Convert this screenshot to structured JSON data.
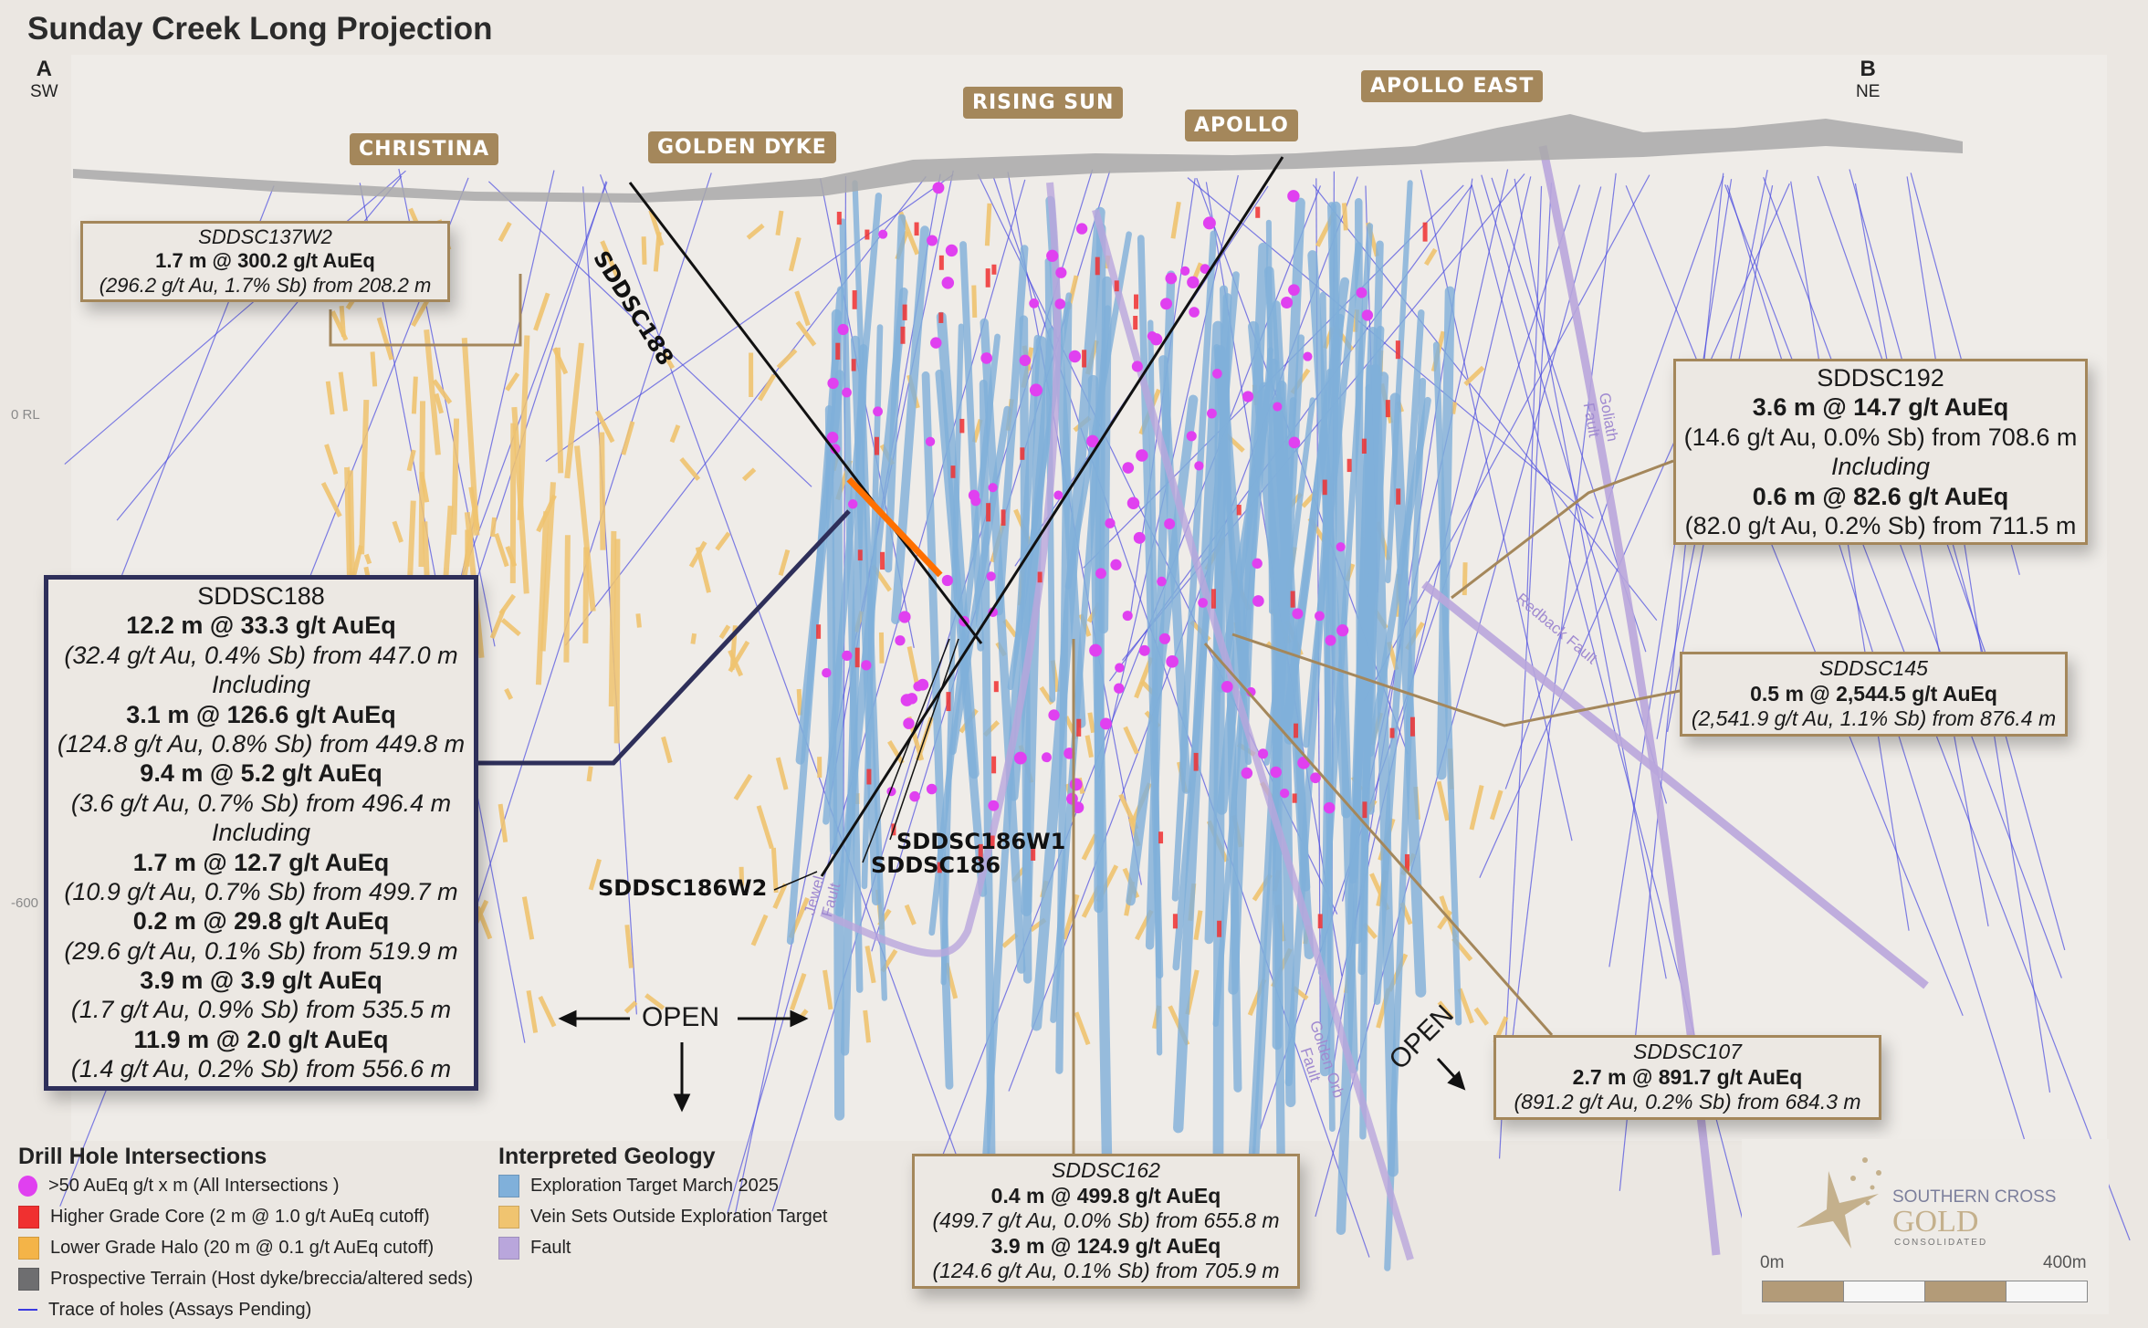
{
  "title": "Sunday Creek Long Projection",
  "section_ends": {
    "a": {
      "letter": "A",
      "direction": "SW"
    },
    "b": {
      "letter": "B",
      "direction": "NE"
    }
  },
  "rl_labels": {
    "zero": "0 RL",
    "minus600": "-600"
  },
  "zones": [
    "CHRISTINA",
    "GOLDEN DYKE",
    "RISING SUN",
    "APOLLO",
    "APOLLO EAST"
  ],
  "hole_labels": {
    "sddsc188": "SDDSC188",
    "sddsc186w1": "SDDSC186W1",
    "sddsc186": "SDDSC186",
    "sddsc186w2": "SDDSC186W2"
  },
  "faults": {
    "goliath": [
      "Goliath",
      "Fault"
    ],
    "redback": "Redback Fault",
    "jewel": [
      "Jewel",
      "Fault"
    ],
    "golden_orb": [
      "Golden Orb",
      "Fault"
    ]
  },
  "open_labels": {
    "horizontal": "OPEN",
    "diagonal": "OPEN"
  },
  "callouts": {
    "sddsc137w2": [
      {
        "text": "SDDSC137W2",
        "kind": "header-italic"
      },
      {
        "text": "1.7 m @ 300.2 g/t AuEq",
        "kind": "grade"
      },
      {
        "text": "(296.2 g/t Au, 1.7% Sb) from 208.2 m",
        "kind": "detail"
      }
    ],
    "sddsc188": [
      {
        "text": "SDDSC188",
        "kind": "header"
      },
      {
        "text": "12.2 m @ 33.3 g/t AuEq",
        "kind": "grade"
      },
      {
        "text": "(32.4 g/t Au, 0.4% Sb) from 447.0 m",
        "kind": "detail"
      },
      {
        "text": "Including",
        "kind": "including"
      },
      {
        "text": "3.1 m @ 126.6 g/t AuEq",
        "kind": "grade"
      },
      {
        "text": "(124.8 g/t Au, 0.8% Sb) from 449.8 m",
        "kind": "detail"
      },
      {
        "text": "9.4 m @ 5.2 g/t AuEq",
        "kind": "grade"
      },
      {
        "text": "(3.6 g/t Au, 0.7% Sb) from 496.4 m",
        "kind": "detail"
      },
      {
        "text": "Including",
        "kind": "including"
      },
      {
        "text": "1.7 m @ 12.7 g/t AuEq",
        "kind": "grade"
      },
      {
        "text": "(10.9 g/t Au, 0.7% Sb) from 499.7 m",
        "kind": "detail"
      },
      {
        "text": "0.2 m @ 29.8 g/t AuEq",
        "kind": "grade"
      },
      {
        "text": "(29.6 g/t Au, 0.1% Sb) from 519.9 m",
        "kind": "detail"
      },
      {
        "text": "3.9 m @ 3.9 g/t AuEq",
        "kind": "grade"
      },
      {
        "text": "(1.7 g/t Au, 0.9% Sb) from 535.5 m",
        "kind": "detail"
      },
      {
        "text": "11.9 m @ 2.0 g/t AuEq",
        "kind": "grade"
      },
      {
        "text": "(1.4 g/t Au, 0.2% Sb) from 556.6 m",
        "kind": "detail"
      }
    ],
    "sddsc192": [
      {
        "text": "SDDSC192",
        "kind": "header"
      },
      {
        "text": "3.6 m @ 14.7 g/t AuEq",
        "kind": "grade"
      },
      {
        "text": "(14.6 g/t Au, 0.0% Sb) from 708.6 m",
        "kind": "detail-plain"
      },
      {
        "text": "Including",
        "kind": "including"
      },
      {
        "text": "0.6 m @ 82.6 g/t AuEq",
        "kind": "grade"
      },
      {
        "text": "(82.0 g/t Au, 0.2% Sb) from 711.5 m",
        "kind": "detail-plain"
      }
    ],
    "sddsc145": [
      {
        "text": "SDDSC145",
        "kind": "header-italic"
      },
      {
        "text": "0.5 m @ 2,544.5 g/t AuEq",
        "kind": "grade"
      },
      {
        "text": "(2,541.9 g/t Au, 1.1% Sb) from 876.4 m",
        "kind": "detail"
      }
    ],
    "sddsc107": [
      {
        "text": "SDDSC107",
        "kind": "header-italic"
      },
      {
        "text": "2.7 m @ 891.7 g/t AuEq",
        "kind": "grade"
      },
      {
        "text": "(891.2 g/t Au, 0.2% Sb) from 684.3 m",
        "kind": "detail"
      }
    ],
    "sddsc162": [
      {
        "text": "SDDSC162",
        "kind": "header-italic"
      },
      {
        "text": "0.4 m @ 499.8 g/t AuEq",
        "kind": "grade"
      },
      {
        "text": "(499.7 g/t Au, 0.0% Sb) from 655.8 m",
        "kind": "detail"
      },
      {
        "text": "3.9 m @ 124.9 g/t AuEq",
        "kind": "grade"
      },
      {
        "text": "(124.6 g/t Au, 0.1% Sb) from 705.9 m",
        "kind": "detail"
      }
    ]
  },
  "legend": {
    "drill": {
      "title": "Drill Hole Intersections",
      "items": [
        {
          "label": ">50 AuEq g/t x m (All Intersections )",
          "color": "#e040f0",
          "shape": "circle"
        },
        {
          "label": "Higher Grade Core (2 m @ 1.0 g/t AuEq cutoff)",
          "color": "#f03030",
          "shape": "square"
        },
        {
          "label": "Lower Grade Halo (20 m @ 0.1 g/t AuEq cutoff)",
          "color": "#f4b448",
          "shape": "square"
        },
        {
          "label": "Prospective Terrain (Host dyke/breccia/altered seds)",
          "color": "#6e6e70",
          "shape": "square"
        },
        {
          "label": "Trace of holes (Assays Pending)",
          "color": "#3a3ae0",
          "shape": "line"
        }
      ]
    },
    "geology": {
      "title": "Interpreted Geology",
      "items": [
        {
          "label": "Exploration Target March 2025",
          "color": "#80b0da",
          "shape": "square"
        },
        {
          "label": "Vein Sets Outside Exploration Target",
          "color": "#f0c470",
          "shape": "square"
        },
        {
          "label": "Fault",
          "color": "#b9a6dc",
          "shape": "square"
        }
      ]
    }
  },
  "logo": {
    "line1": "SOUTHERN CROSS",
    "line2": "GOLD",
    "line3": "CONSOLIDATED"
  },
  "scale_bar": {
    "start": "0m",
    "end": "400m"
  },
  "colors": {
    "background": "#ebe7e2",
    "callout_border": "#a4875b",
    "highlight_border": "#2e2f5a",
    "target_blue": "#80b0da",
    "vein_orange": "#f0c470",
    "fault_purple": "#b9a6dc",
    "hole_trace": "#4a4ae0",
    "intersection_magenta": "#e040f0"
  }
}
